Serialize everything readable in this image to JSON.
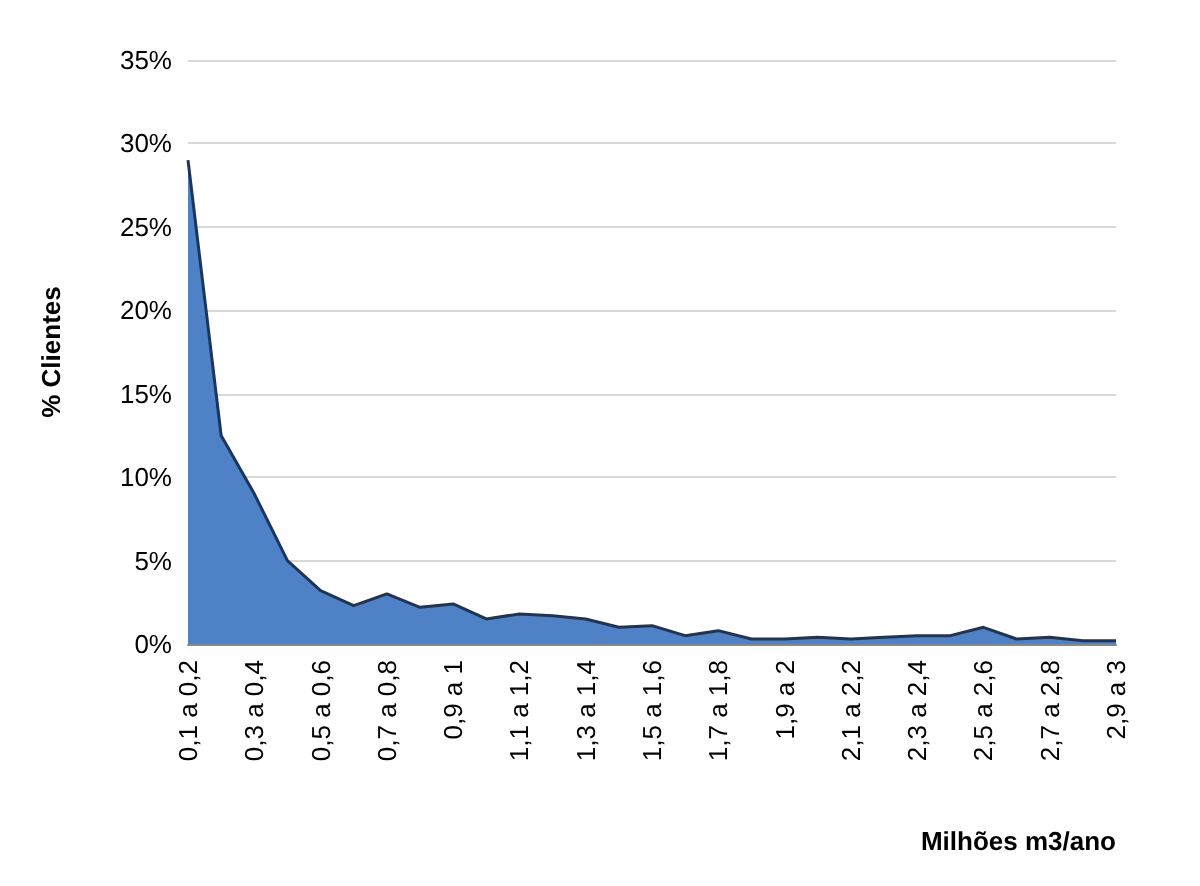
{
  "chart_data": {
    "type": "area",
    "xlabel": "Milhões m3/ano",
    "ylabel": "% Clientes",
    "categories": [
      "0,1 a 0,2",
      null,
      "0,3 a 0,4",
      null,
      "0,5 a 0,6",
      null,
      "0,7 a 0,8",
      null,
      "0,9 a 1",
      null,
      "1,1 a 1,2",
      null,
      "1,3 a 1,4",
      null,
      "1,5 a 1,6",
      null,
      "1,7 a 1,8",
      null,
      "1,9 a 2",
      null,
      "2,1 a 2,2",
      null,
      "2,3 a 2,4",
      null,
      "2,5 a 2,6",
      null,
      "2,7 a 2,8",
      null,
      "2,9 a 3"
    ],
    "series": [
      {
        "color": "#4f81c7",
        "values": [
          29,
          12.5,
          9,
          5,
          3.2,
          2.3,
          3,
          2.2,
          2.4,
          1.5,
          1.8,
          1.7,
          1.5,
          1,
          1.1,
          0.5,
          0.8,
          0.3,
          0.3,
          0.4,
          0.3,
          0.4,
          0.5,
          0.5,
          1,
          0.3,
          0.4,
          0.2,
          0.2
        ]
      }
    ],
    "ylim": [
      0,
      35
    ],
    "yticks": [
      {
        "value": 0,
        "label": "0%"
      },
      {
        "value": 5,
        "label": "5%"
      },
      {
        "value": 10,
        "label": "10%"
      },
      {
        "value": 15,
        "label": "15%"
      },
      {
        "value": 20,
        "label": "20%"
      },
      {
        "value": 25,
        "label": "25%"
      },
      {
        "value": 30,
        "label": "30%"
      },
      {
        "value": 35,
        "label": "35%"
      }
    ],
    "grid": "y",
    "marker": "none"
  }
}
